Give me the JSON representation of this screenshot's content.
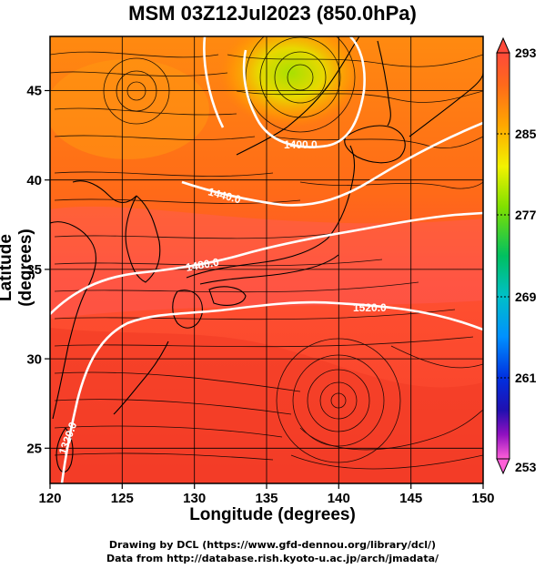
{
  "title": "MSM 03Z12Jul2023 (850.0hPa)",
  "xlabel": "Longitude (degrees)",
  "ylabel": "Latitude  (degrees)",
  "credits": [
    "Drawing by DCL (https://www.gfd-dennou.org/library/dcl/)",
    "Data from http://database.rish.kyoto-u.ac.jp/arch/jmadata/"
  ],
  "map": {
    "lon_range": [
      120,
      150
    ],
    "lat_range": [
      22.5,
      47.5
    ],
    "lon_ticks": [
      "120",
      "125",
      "130",
      "135",
      "140",
      "145",
      "150"
    ],
    "lat_ticks": [
      "25",
      "30",
      "35",
      "40",
      "45"
    ],
    "contours": [
      {
        "label": "1320.0",
        "level": 1320
      },
      {
        "label": "1400.0",
        "level": 1400
      },
      {
        "label": "1440.0",
        "level": 1440
      },
      {
        "label": "1480.0",
        "level": 1480
      },
      {
        "label": "1520.0",
        "level": 1520
      }
    ]
  },
  "colorbar": {
    "range": [
      253,
      293
    ],
    "labels": [
      "293",
      "285",
      "277",
      "269",
      "261",
      "253"
    ]
  }
}
